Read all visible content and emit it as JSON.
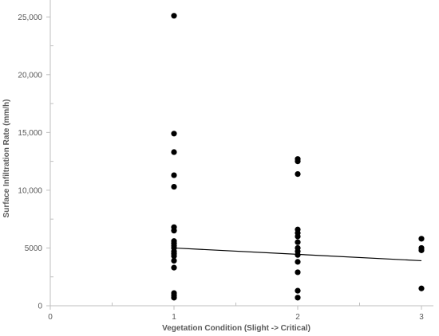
{
  "chart_data": {
    "type": "scatter",
    "title": "",
    "xlabel": "Vegetation Condition (Slight -> Critical)",
    "ylabel": "Surface Infiltration Rate (mm/h)",
    "xlim": [
      0,
      3
    ],
    "ylim": [
      0,
      25500
    ],
    "x_ticks": [
      0,
      1,
      2,
      3
    ],
    "x_tick_labels": [
      "0",
      "1",
      "2",
      "3"
    ],
    "y_ticks": [
      0,
      5000,
      10000,
      15000,
      20000,
      25000
    ],
    "y_tick_labels": [
      "0",
      "5000",
      "10,000",
      "15,000",
      "20,000",
      "25,000"
    ],
    "grid": false,
    "legend": "none",
    "colors": {
      "points": "#000000",
      "trendline": "#000000",
      "axis": "#bfbfbf",
      "text": "#595959"
    },
    "points": [
      {
        "x": 1,
        "y": 25100
      },
      {
        "x": 1,
        "y": 14900
      },
      {
        "x": 1,
        "y": 13300
      },
      {
        "x": 1,
        "y": 11300
      },
      {
        "x": 1,
        "y": 10300
      },
      {
        "x": 1,
        "y": 6800
      },
      {
        "x": 1,
        "y": 6500
      },
      {
        "x": 1,
        "y": 5600
      },
      {
        "x": 1,
        "y": 5400
      },
      {
        "x": 1,
        "y": 5200
      },
      {
        "x": 1,
        "y": 5000
      },
      {
        "x": 1,
        "y": 4700
      },
      {
        "x": 1,
        "y": 4500
      },
      {
        "x": 1,
        "y": 4300
      },
      {
        "x": 1,
        "y": 3900
      },
      {
        "x": 1,
        "y": 3300
      },
      {
        "x": 1,
        "y": 1100
      },
      {
        "x": 1,
        "y": 900
      },
      {
        "x": 1,
        "y": 700
      },
      {
        "x": 2,
        "y": 12700
      },
      {
        "x": 2,
        "y": 12500
      },
      {
        "x": 2,
        "y": 11400
      },
      {
        "x": 2,
        "y": 6600
      },
      {
        "x": 2,
        "y": 6300
      },
      {
        "x": 2,
        "y": 6000
      },
      {
        "x": 2,
        "y": 5500
      },
      {
        "x": 2,
        "y": 5000
      },
      {
        "x": 2,
        "y": 4700
      },
      {
        "x": 2,
        "y": 4400
      },
      {
        "x": 2,
        "y": 3800
      },
      {
        "x": 2,
        "y": 2900
      },
      {
        "x": 2,
        "y": 1300
      },
      {
        "x": 2,
        "y": 700
      },
      {
        "x": 3,
        "y": 5800
      },
      {
        "x": 3,
        "y": 5000
      },
      {
        "x": 3,
        "y": 4800
      },
      {
        "x": 3,
        "y": 1500
      }
    ],
    "trendline": {
      "type": "linear",
      "x": [
        1,
        3
      ],
      "y": [
        5000,
        3900
      ]
    }
  }
}
